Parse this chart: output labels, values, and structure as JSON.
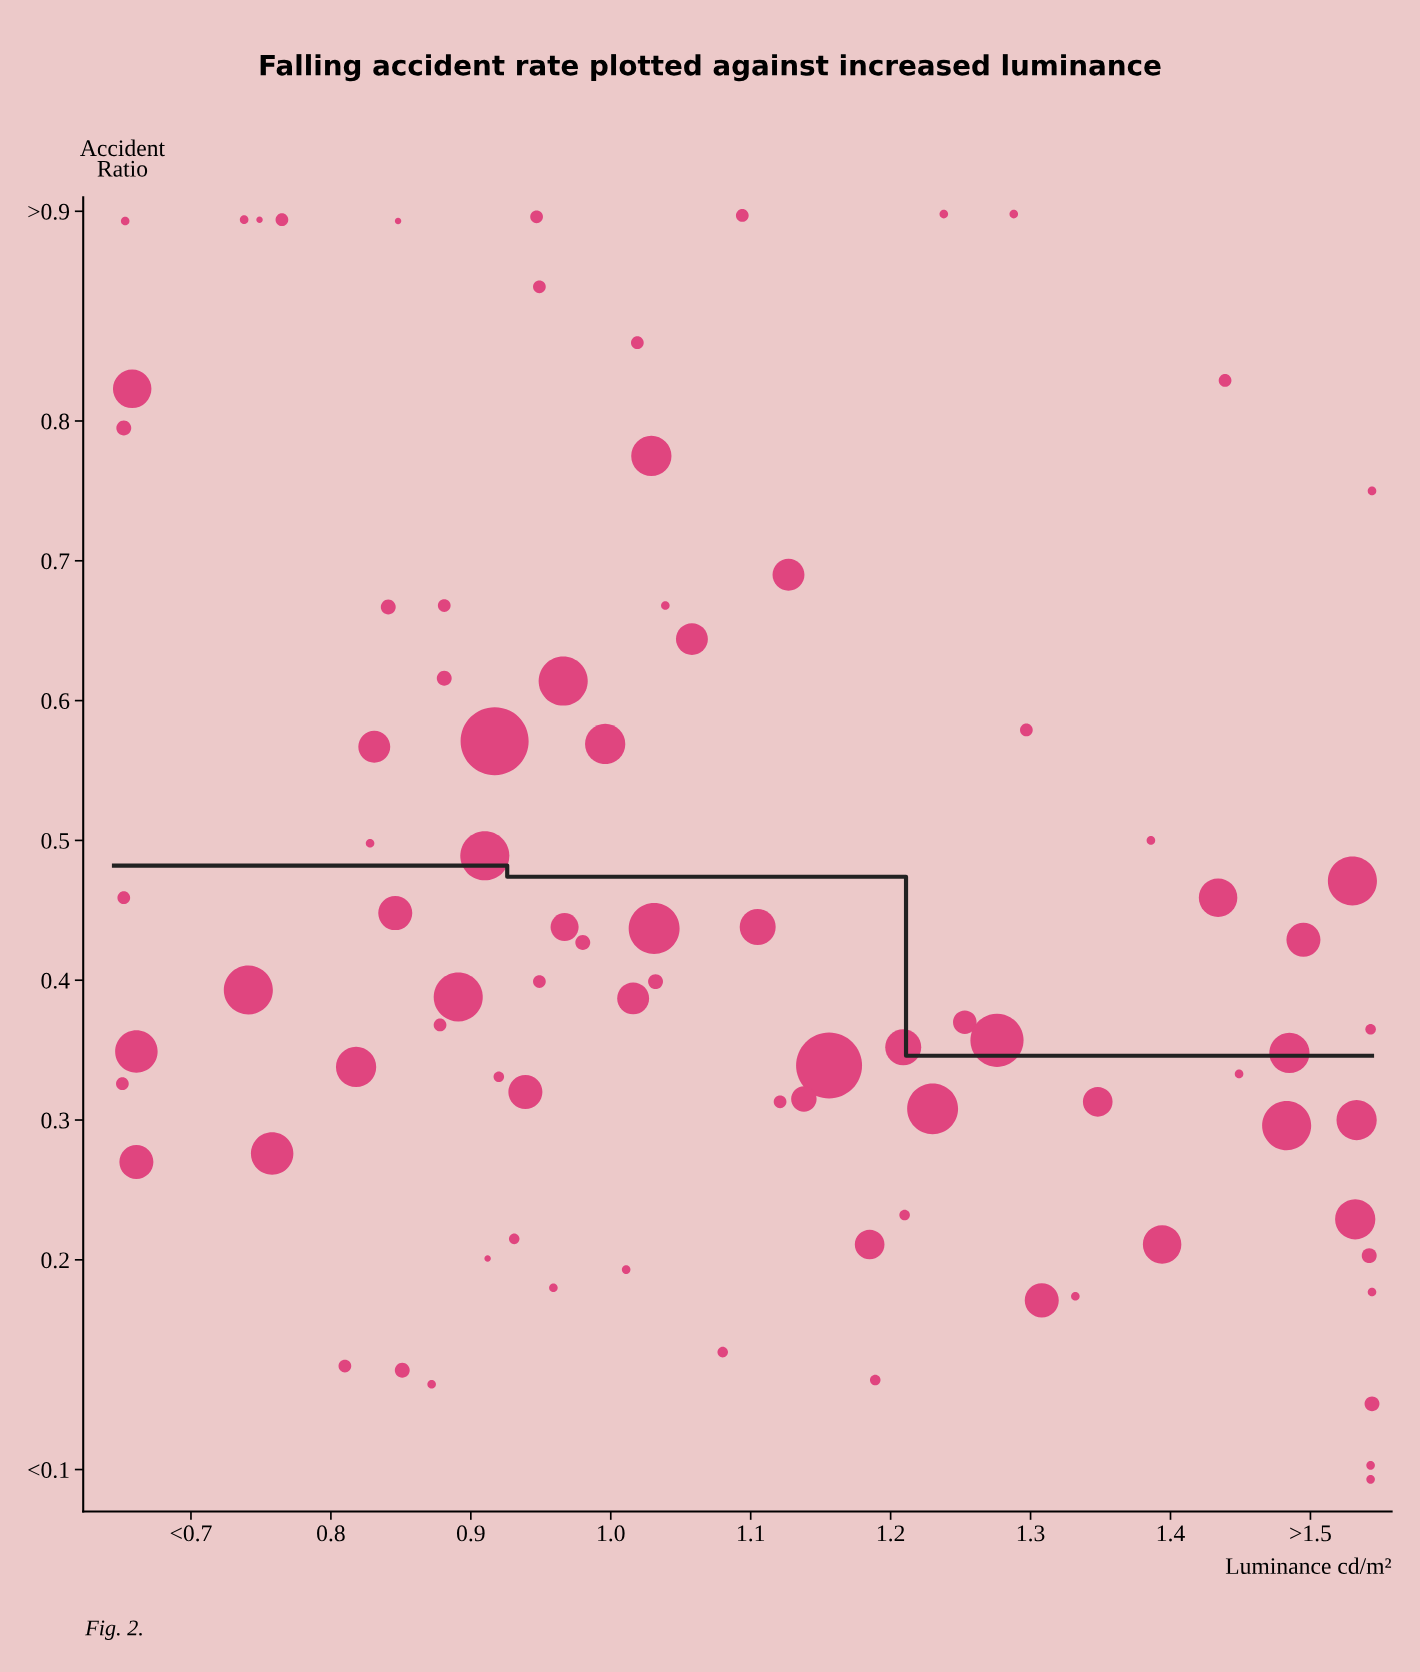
{
  "chart_data": {
    "type": "bubble",
    "title": "Falling accident rate plotted against increased luminance",
    "ylabel": "Accident\nRatio",
    "xlabel": "Luminance cd/m²",
    "annotations": [
      "Fig. 2."
    ],
    "xlim": [
      0.623,
      1.558
    ],
    "ylim": [
      0.02,
      0.96
    ],
    "xticks": [
      {
        "value": 0.7,
        "label": "<0.7"
      },
      0.8,
      0.9,
      {
        "value": 1.0,
        "label": "1.0"
      },
      1.1,
      1.2,
      1.3,
      1.4,
      {
        "value": 1.5,
        "label": ">1.5"
      }
    ],
    "yticks": [
      {
        "value": 0.05,
        "label": "<0.1"
      },
      0.2,
      0.3,
      0.4,
      0.5,
      0.6,
      0.7,
      0.8,
      {
        "value": 0.95,
        "label": ">0.9"
      }
    ],
    "grid": false,
    "legend": false,
    "series": [
      {
        "color": "#e0457f",
        "x": [
          0.653,
          0.738,
          0.749,
          0.765,
          0.848,
          0.947,
          1.094,
          1.238,
          1.288,
          0.949,
          1.019,
          0.658,
          0.652,
          1.029,
          1.439,
          1.544,
          1.127,
          0.841,
          0.881,
          1.039,
          1.058,
          0.881,
          0.966,
          0.917,
          0.831,
          0.996,
          1.297,
          0.828,
          1.386,
          0.91,
          0.652,
          0.846,
          0.967,
          1.031,
          0.98,
          1.105,
          1.434,
          1.53,
          1.495,
          0.741,
          0.891,
          0.949,
          1.032,
          1.016,
          0.878,
          0.661,
          0.818,
          0.651,
          0.92,
          0.939,
          1.156,
          1.138,
          1.121,
          1.209,
          1.253,
          1.276,
          1.485,
          1.543,
          1.449,
          1.23,
          1.348,
          1.483,
          1.533,
          0.661,
          0.758,
          1.21,
          0.931,
          0.912,
          1.185,
          1.394,
          1.532,
          1.542,
          0.959,
          1.011,
          1.308,
          1.332,
          1.544,
          0.81,
          0.851,
          0.872,
          1.08,
          1.189,
          1.544,
          1.543,
          1.543
        ],
        "values": [
          0.943,
          0.944,
          0.944,
          0.944,
          0.943,
          0.946,
          0.947,
          0.948,
          0.948,
          0.896,
          0.856,
          0.823,
          0.795,
          0.775,
          0.829,
          0.75,
          0.69,
          0.667,
          0.668,
          0.668,
          0.644,
          0.616,
          0.614,
          0.571,
          0.567,
          0.569,
          0.579,
          0.498,
          0.5,
          0.489,
          0.459,
          0.448,
          0.438,
          0.437,
          0.427,
          0.438,
          0.459,
          0.471,
          0.429,
          0.393,
          0.388,
          0.399,
          0.399,
          0.387,
          0.368,
          0.349,
          0.338,
          0.326,
          0.331,
          0.32,
          0.339,
          0.315,
          0.313,
          0.352,
          0.37,
          0.357,
          0.348,
          0.365,
          0.333,
          0.308,
          0.313,
          0.296,
          0.3,
          0.27,
          0.276,
          0.232,
          0.215,
          0.201,
          0.211,
          0.211,
          0.229,
          0.203,
          0.18,
          0.193,
          0.171,
          0.174,
          0.177,
          0.124,
          0.121,
          0.111,
          0.134,
          0.114,
          0.097,
          0.053,
          0.043
        ],
        "sizes": [
          0.016,
          0.016,
          0.009,
          0.035,
          0.009,
          0.035,
          0.035,
          0.016,
          0.016,
          0.035,
          0.035,
          0.32,
          0.048,
          0.35,
          0.035,
          0.016,
          0.22,
          0.048,
          0.035,
          0.016,
          0.22,
          0.048,
          0.52,
          1,
          0.22,
          0.35,
          0.035,
          0.016,
          0.016,
          0.52,
          0.035,
          0.25,
          0.17,
          0.56,
          0.048,
          0.28,
          0.32,
          0.52,
          0.25,
          0.52,
          0.52,
          0.035,
          0.048,
          0.22,
          0.035,
          0.39,
          0.35,
          0.035,
          0.024,
          0.25,
          0.94,
          0.14,
          0.035,
          0.28,
          0.12,
          0.61,
          0.35,
          0.024,
          0.016,
          0.56,
          0.19,
          0.52,
          0.35,
          0.25,
          0.39,
          0.024,
          0.024,
          0.009,
          0.19,
          0.32,
          0.35,
          0.048,
          0.016,
          0.016,
          0.25,
          0.016,
          0.016,
          0.035,
          0.048,
          0.016,
          0.024,
          0.024,
          0.048,
          0.016,
          0.016
        ]
      },
      {
        "type": "step",
        "color": "#222222",
        "x": [
          0.645,
          0.926,
          1.211,
          1.544
        ],
        "values": [
          0.482,
          0.474,
          0.346,
          0.346
        ]
      }
    ]
  }
}
